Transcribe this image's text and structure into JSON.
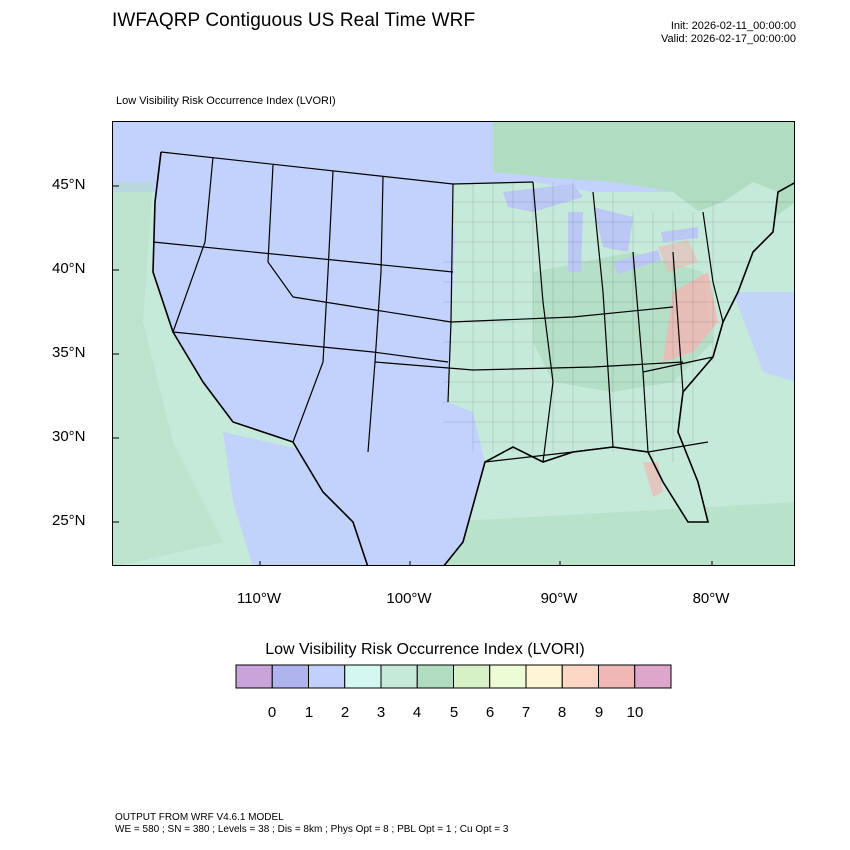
{
  "header": {
    "title": "IWFAQRP Contiguous US Real Time WRF",
    "init": "Init: 2026-02-11_00:00:00",
    "valid": "Valid: 2026-02-17_00:00:00"
  },
  "plot": {
    "subtitle": "Low Visibility Risk Occurrence Index   (LVORI)",
    "lat_labels": [
      "45°N",
      "40°N",
      "35°N",
      "30°N",
      "25°N"
    ],
    "lon_labels": [
      "110°W",
      "100°W",
      "90°W",
      "80°W"
    ],
    "colors": {
      "ocean": "#c6ead9",
      "land_low": "#c2d2fc",
      "land_mid": "#c6ead9",
      "land_high": "#b0dcc2",
      "land_peak": "#efb8b4",
      "lake": "#bcc8f4"
    }
  },
  "colorbar": {
    "title": "Low Visibility Risk Occurrence Index  (LVORI)",
    "labels": [
      "0",
      "1",
      "2",
      "3",
      "4",
      "5",
      "6",
      "7",
      "8",
      "9",
      "10"
    ],
    "colors": [
      "#c9a3d9",
      "#b0b4ee",
      "#c2d0fc",
      "#d2f8ef",
      "#c6ead9",
      "#b0dcc2",
      "#d7f1c6",
      "#eefcd6",
      "#fef5d5",
      "#fdd6c4",
      "#efb8b4",
      "#dca7cb"
    ]
  },
  "footer": {
    "line1": "OUTPUT FROM WRF V4.6.1 MODEL",
    "line2": "WE = 580 ; SN = 380 ; Levels = 38 ; Dis = 8km ; Phys Opt = 8 ; PBL Opt = 1 ; Cu Opt = 3"
  }
}
